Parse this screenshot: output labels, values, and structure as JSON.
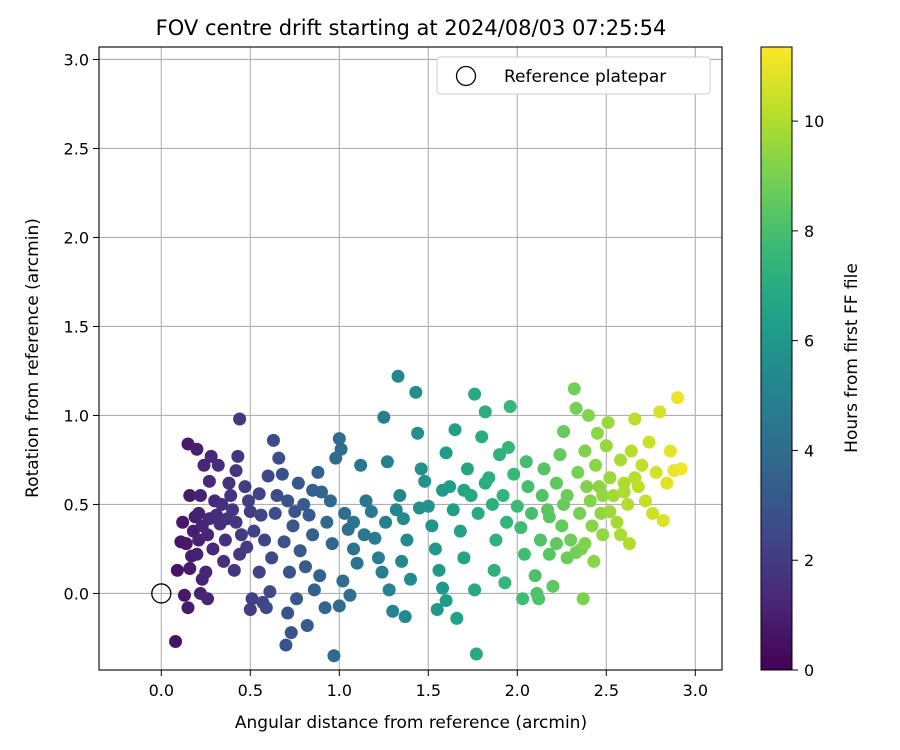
{
  "chart_data": {
    "type": "scatter",
    "title": "FOV centre drift starting at 2024/08/03 07:25:54",
    "xlabel": "Angular distance from reference (arcmin)",
    "ylabel": "Rotation from reference (arcmin)",
    "xlim": [
      -0.35,
      3.15
    ],
    "ylim": [
      -0.43,
      3.07
    ],
    "xticks": [
      "0.0",
      "0.5",
      "1.0",
      "1.5",
      "2.0",
      "2.5",
      "3.0"
    ],
    "yticks": [
      "0.0",
      "0.5",
      "1.0",
      "1.5",
      "2.0",
      "2.5",
      "3.0"
    ],
    "grid": true,
    "legend": {
      "placement": "top-right",
      "label": "Reference platepar"
    },
    "reference_point": {
      "x": 0.0,
      "y": 0.0
    },
    "colorbar": {
      "label": "Hours from first FF file",
      "range": [
        0,
        11.35
      ],
      "ticks": [
        "0",
        "2",
        "4",
        "6",
        "8",
        "10"
      ],
      "colormap": [
        "#440154",
        "#482878",
        "#3e4989",
        "#31688e",
        "#26828e",
        "#1f9e89",
        "#35b779",
        "#6ece58",
        "#b5de2b",
        "#fde725"
      ]
    },
    "series": [
      {
        "points": [
          [
            0.44,
            0.98
          ],
          [
            0.63,
            0.86
          ],
          [
            0.42,
            0.69
          ],
          [
            0.2,
            0.81
          ],
          [
            0.28,
            0.77
          ],
          [
            0.32,
            0.72
          ],
          [
            0.14,
            0.28
          ],
          [
            0.22,
            0.55
          ],
          [
            0.38,
            0.62
          ],
          [
            0.18,
            0.35
          ],
          [
            0.26,
            0.33
          ],
          [
            0.6,
            0.66
          ],
          [
            0.11,
            0.29
          ],
          [
            0.15,
            0.84
          ],
          [
            0.09,
            0.13
          ],
          [
            0.13,
            -0.01
          ],
          [
            0.15,
            -0.08
          ],
          [
            0.08,
            -0.27
          ],
          [
            0.23,
            0.08
          ],
          [
            0.24,
            0.72
          ],
          [
            0.17,
            0.21
          ],
          [
            0.21,
            0.45
          ],
          [
            0.3,
            0.52
          ],
          [
            0.33,
            0.39
          ],
          [
            0.35,
            0.18
          ],
          [
            0.27,
            0.63
          ],
          [
            0.19,
            0.43
          ],
          [
            0.16,
            0.55
          ],
          [
            0.4,
            0.47
          ],
          [
            0.36,
            0.3
          ],
          [
            0.12,
            0.4
          ],
          [
            0.29,
            0.25
          ],
          [
            0.25,
            0.12
          ],
          [
            0.45,
            0.33
          ],
          [
            0.43,
            0.77
          ],
          [
            0.39,
            0.55
          ],
          [
            0.31,
            0.44
          ],
          [
            0.47,
            0.6
          ],
          [
            0.2,
            0.22
          ],
          [
            0.23,
            0.38
          ],
          [
            0.44,
            0.22
          ],
          [
            0.5,
            0.46
          ],
          [
            0.52,
            0.35
          ],
          [
            0.48,
            0.26
          ],
          [
            0.41,
            0.13
          ],
          [
            0.37,
            0.42
          ],
          [
            0.55,
            0.56
          ],
          [
            0.58,
            0.3
          ],
          [
            0.62,
            0.2
          ],
          [
            0.55,
            0.12
          ],
          [
            0.66,
            0.76
          ],
          [
            0.68,
            0.67
          ],
          [
            0.64,
            0.45
          ],
          [
            0.71,
            0.52
          ],
          [
            0.74,
            0.38
          ],
          [
            0.69,
            0.29
          ],
          [
            0.72,
            0.12
          ],
          [
            0.77,
            0.62
          ],
          [
            0.8,
            0.5
          ],
          [
            0.83,
            0.44
          ],
          [
            0.85,
            0.33
          ],
          [
            0.78,
            0.24
          ],
          [
            0.81,
            0.15
          ],
          [
            0.88,
            0.68
          ],
          [
            0.9,
            0.57
          ],
          [
            0.93,
            0.4
          ],
          [
            0.96,
            0.28
          ],
          [
            0.89,
            0.1
          ],
          [
            0.86,
            0.02
          ],
          [
            0.92,
            -0.08
          ],
          [
            0.71,
            -0.11
          ],
          [
            0.76,
            -0.03
          ],
          [
            0.82,
            -0.18
          ],
          [
            0.73,
            -0.22
          ],
          [
            0.7,
            -0.29
          ],
          [
            0.97,
            -0.35
          ],
          [
            0.61,
            0.01
          ],
          [
            0.57,
            -0.05
          ],
          [
            0.51,
            -0.03
          ],
          [
            0.5,
            -0.09
          ],
          [
            0.59,
            -0.08
          ],
          [
            0.26,
            -0.03
          ],
          [
            0.22,
            0.0
          ],
          [
            0.98,
            0.76
          ],
          [
            1.0,
            0.87
          ],
          [
            1.01,
            0.81
          ],
          [
            1.03,
            0.45
          ],
          [
            1.05,
            0.36
          ],
          [
            1.08,
            0.25
          ],
          [
            1.1,
            0.17
          ],
          [
            1.02,
            0.07
          ],
          [
            1.0,
            -0.07
          ],
          [
            1.06,
            -0.01
          ],
          [
            1.12,
            0.72
          ],
          [
            1.15,
            0.52
          ],
          [
            1.18,
            0.46
          ],
          [
            1.2,
            0.31
          ],
          [
            1.22,
            0.2
          ],
          [
            1.25,
            0.99
          ],
          [
            1.27,
            0.74
          ],
          [
            1.24,
            0.12
          ],
          [
            1.28,
            0.02
          ],
          [
            1.3,
            -0.1
          ],
          [
            1.33,
            1.22
          ],
          [
            1.34,
            0.55
          ],
          [
            1.36,
            0.42
          ],
          [
            1.38,
            0.3
          ],
          [
            1.35,
            0.18
          ],
          [
            1.4,
            0.08
          ],
          [
            1.37,
            -0.13
          ],
          [
            1.43,
            1.13
          ],
          [
            1.44,
            0.9
          ],
          [
            1.46,
            0.7
          ],
          [
            1.48,
            0.63
          ],
          [
            1.5,
            0.49
          ],
          [
            1.52,
            0.38
          ],
          [
            1.54,
            0.25
          ],
          [
            1.56,
            0.13
          ],
          [
            1.58,
            0.03
          ],
          [
            1.55,
            -0.09
          ],
          [
            1.6,
            0.79
          ],
          [
            1.62,
            0.6
          ],
          [
            1.64,
            0.47
          ],
          [
            1.65,
            0.92
          ],
          [
            1.68,
            0.35
          ],
          [
            1.7,
            0.2
          ],
          [
            1.72,
            0.7
          ],
          [
            1.74,
            0.55
          ],
          [
            1.76,
            1.12
          ],
          [
            1.78,
            0.45
          ],
          [
            1.66,
            -0.14
          ],
          [
            1.6,
            -0.04
          ],
          [
            1.8,
            0.88
          ],
          [
            1.82,
            1.02
          ],
          [
            1.84,
            0.65
          ],
          [
            1.86,
            0.5
          ],
          [
            1.88,
            0.3
          ],
          [
            1.9,
            0.78
          ],
          [
            1.92,
            0.55
          ],
          [
            1.94,
            0.4
          ],
          [
            1.76,
            0.02
          ],
          [
            1.77,
            -0.34
          ],
          [
            1.96,
            1.05
          ],
          [
            1.98,
            0.67
          ],
          [
            2.0,
            0.49
          ],
          [
            2.02,
            0.37
          ],
          [
            2.04,
            0.22
          ],
          [
            2.05,
            0.74
          ],
          [
            2.06,
            0.6
          ],
          [
            2.08,
            0.45
          ],
          [
            1.87,
            0.13
          ],
          [
            1.93,
            0.06
          ],
          [
            2.03,
            -0.03
          ],
          [
            2.1,
            0.1
          ],
          [
            2.11,
            0.0
          ],
          [
            2.12,
            -0.03
          ],
          [
            2.13,
            0.3
          ],
          [
            2.14,
            0.55
          ],
          [
            2.15,
            0.7
          ],
          [
            2.17,
            0.47
          ],
          [
            2.18,
            0.22
          ],
          [
            2.2,
            0.04
          ],
          [
            2.22,
            0.62
          ],
          [
            2.24,
            0.78
          ],
          [
            2.25,
            0.38
          ],
          [
            2.26,
            0.91
          ],
          [
            2.28,
            0.55
          ],
          [
            2.3,
            0.3
          ],
          [
            2.32,
            1.15
          ],
          [
            2.33,
            1.04
          ],
          [
            2.34,
            0.68
          ],
          [
            2.35,
            0.45
          ],
          [
            2.36,
            0.25
          ],
          [
            2.37,
            -0.03
          ],
          [
            2.38,
            0.8
          ],
          [
            2.39,
            0.6
          ],
          [
            2.4,
            1.0
          ],
          [
            2.41,
            0.52
          ],
          [
            2.42,
            0.38
          ],
          [
            2.43,
            0.18
          ],
          [
            2.44,
            0.72
          ],
          [
            2.45,
            0.9
          ],
          [
            2.46,
            0.6
          ],
          [
            2.47,
            0.45
          ],
          [
            2.48,
            0.33
          ],
          [
            2.5,
            0.83
          ],
          [
            2.51,
            0.96
          ],
          [
            2.52,
            0.65
          ],
          [
            2.54,
            0.55
          ],
          [
            2.56,
            0.4
          ],
          [
            2.58,
            0.75
          ],
          [
            2.6,
            0.62
          ],
          [
            2.62,
            0.5
          ],
          [
            2.63,
            0.28
          ],
          [
            2.64,
            0.8
          ],
          [
            2.66,
            0.98
          ],
          [
            2.68,
            0.6
          ],
          [
            2.7,
            0.72
          ],
          [
            2.72,
            0.52
          ],
          [
            2.74,
            0.85
          ],
          [
            2.76,
            0.45
          ],
          [
            2.78,
            0.68
          ],
          [
            2.8,
            1.02
          ],
          [
            2.82,
            0.41
          ],
          [
            2.84,
            0.62
          ],
          [
            2.86,
            0.8
          ],
          [
            2.88,
            0.69
          ],
          [
            2.9,
            1.1
          ],
          [
            2.92,
            0.7
          ],
          [
            2.58,
            0.33
          ],
          [
            2.33,
            0.23
          ],
          [
            2.38,
            0.28
          ],
          [
            2.28,
            0.2
          ],
          [
            2.22,
            0.28
          ],
          [
            2.18,
            0.43
          ],
          [
            2.26,
            0.5
          ],
          [
            2.48,
            0.55
          ],
          [
            2.52,
            0.46
          ],
          [
            2.6,
            0.57
          ],
          [
            2.66,
            0.65
          ],
          [
            1.95,
            0.82
          ],
          [
            1.82,
            0.62
          ],
          [
            1.7,
            0.58
          ],
          [
            1.58,
            0.58
          ],
          [
            1.45,
            0.48
          ],
          [
            1.32,
            0.47
          ],
          [
            1.26,
            0.4
          ],
          [
            1.14,
            0.33
          ],
          [
            1.08,
            0.4
          ],
          [
            0.95,
            0.52
          ],
          [
            0.85,
            0.58
          ],
          [
            0.75,
            0.46
          ],
          [
            0.65,
            0.55
          ],
          [
            0.56,
            0.44
          ],
          [
            0.49,
            0.52
          ],
          [
            0.42,
            0.4
          ],
          [
            0.34,
            0.5
          ],
          [
            0.27,
            0.42
          ],
          [
            0.21,
            0.3
          ],
          [
            0.16,
            0.14
          ]
        ]
      }
    ]
  }
}
